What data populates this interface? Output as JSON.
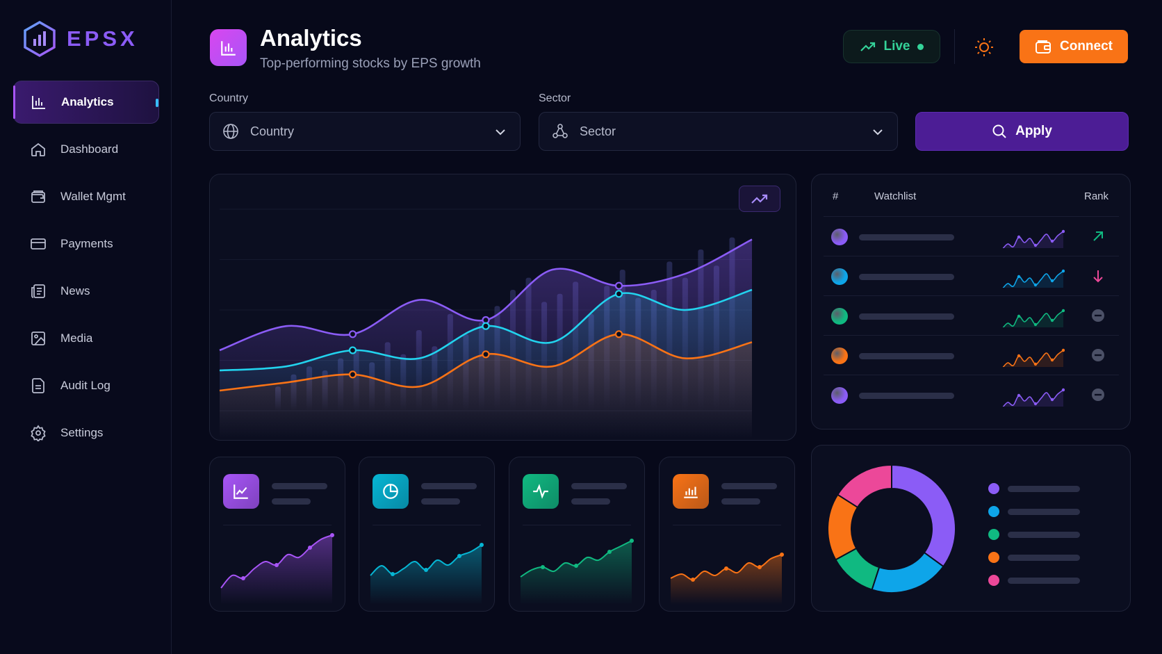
{
  "brand": {
    "name": "EPSX"
  },
  "sidebar": {
    "items": [
      {
        "label": "Analytics",
        "icon": "bar-chart-icon"
      },
      {
        "label": "Dashboard",
        "icon": "home-icon"
      },
      {
        "label": "Wallet Mgmt",
        "icon": "wallet-icon"
      },
      {
        "label": "Payments",
        "icon": "card-icon"
      },
      {
        "label": "News",
        "icon": "newspaper-icon"
      },
      {
        "label": "Media",
        "icon": "image-icon"
      },
      {
        "label": "Audit Log",
        "icon": "document-icon"
      },
      {
        "label": "Settings",
        "icon": "gear-icon"
      }
    ],
    "active_index": 0
  },
  "header": {
    "title": "Analytics",
    "subtitle": "Top-performing stocks by EPS growth",
    "live_label": "Live",
    "connect_label": "Connect"
  },
  "filters": {
    "country_label": "Country",
    "country_placeholder": "Country",
    "sector_label": "Sector",
    "sector_placeholder": "Sector",
    "apply_label": "Apply"
  },
  "watchlist": {
    "col_index": "#",
    "col_name": "Watchlist",
    "col_rank": "Rank",
    "rows": [
      {
        "color": "#8b5cf6",
        "rank": "up"
      },
      {
        "color": "#0ea5e9",
        "rank": "down"
      },
      {
        "color": "#10b981",
        "rank": "neutral"
      },
      {
        "color": "#f97316",
        "rank": "neutral"
      },
      {
        "color": "#8b5cf6",
        "rank": "neutral"
      }
    ]
  },
  "stat_cards": [
    {
      "icon": "trend-chart-icon",
      "color": "#a855f7"
    },
    {
      "icon": "pie-chart-icon",
      "color": "#06b6d4"
    },
    {
      "icon": "pulse-icon",
      "color": "#10b981"
    },
    {
      "icon": "bar-chart-icon",
      "color": "#f97316"
    }
  ],
  "colors": {
    "accent": "#8b5cf6",
    "cyan": "#22d3ee",
    "orange": "#f97316",
    "green": "#10b981",
    "pink": "#ec4899",
    "live": "#34d399"
  },
  "donut": {
    "segments": [
      {
        "color": "#8b5cf6",
        "value": 0.35
      },
      {
        "color": "#0ea5e9",
        "value": 0.2
      },
      {
        "color": "#10b981",
        "value": 0.12
      },
      {
        "color": "#f97316",
        "value": 0.17
      },
      {
        "color": "#ec4899",
        "value": 0.16
      }
    ]
  },
  "chart_data": {
    "type": "line",
    "title": "",
    "series": [
      {
        "values": [
          30,
          42,
          38,
          55,
          45,
          70,
          62,
          68,
          85
        ]
      },
      {
        "values": [
          20,
          22,
          30,
          26,
          42,
          34,
          58,
          50,
          60
        ]
      },
      {
        "values": [
          10,
          14,
          18,
          12,
          28,
          22,
          38,
          26,
          34
        ]
      }
    ],
    "bars": [
      12,
      18,
      22,
      20,
      26,
      30,
      24,
      34,
      28,
      40,
      32,
      48,
      38,
      44,
      52,
      60,
      66,
      54,
      58,
      64,
      48,
      62,
      70,
      56,
      60,
      74,
      66,
      80,
      72,
      86
    ],
    "ylim": [
      0,
      100
    ]
  }
}
